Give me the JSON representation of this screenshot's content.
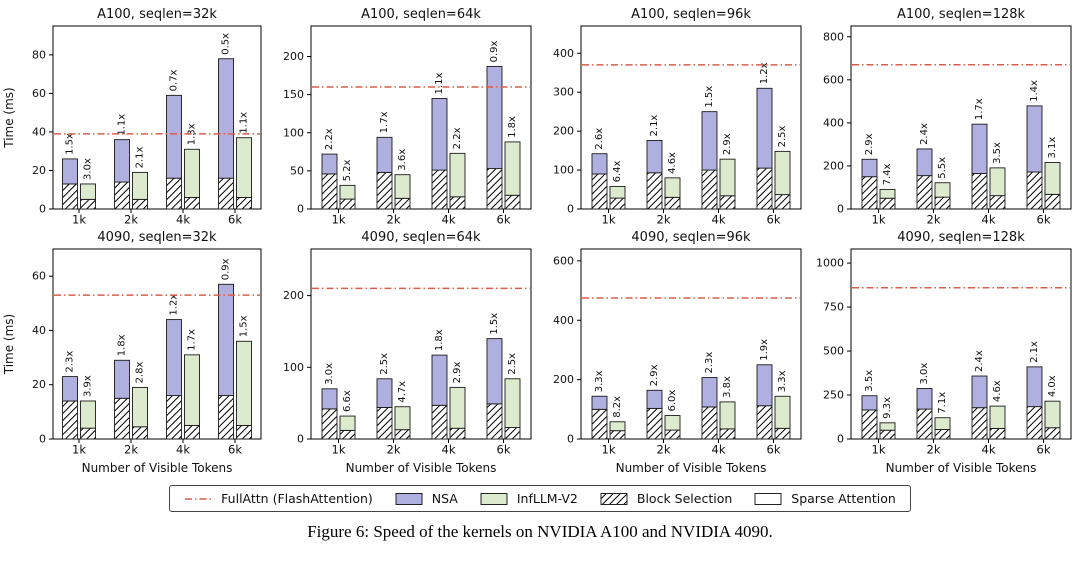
{
  "figure": {
    "caption": "Figure 6: Speed of the kernels on NVIDIA A100 and NVIDIA 4090.",
    "ylabel": "Time (ms)",
    "xlabel": "Number of Visible Tokens"
  },
  "colors": {
    "nsa": "#b0b0e0",
    "infllm": "#dceacd",
    "fullattn_line": "#d95f4c",
    "bar_edge": "#1a1a1a"
  },
  "legend": {
    "items": [
      {
        "label": "FullAttn (FlashAttention)",
        "type": "dashdot-line",
        "color": "#d95f4c"
      },
      {
        "label": "NSA",
        "type": "solid",
        "color": "#b0b0e0"
      },
      {
        "label": "InfLLM-V2",
        "type": "solid",
        "color": "#dceacd"
      },
      {
        "label": "Block Selection",
        "type": "hatched",
        "color": "#ffffff"
      },
      {
        "label": "Sparse Attention",
        "type": "solid",
        "color": "#ffffff"
      }
    ]
  },
  "chart_data": {
    "type": "bar",
    "categories": [
      "1k",
      "2k",
      "4k",
      "6k"
    ],
    "series_names": [
      "NSA",
      "InfLLM-V2"
    ],
    "note": "Stacked bars: hatched lower segment = Block Selection time, upper segment = Sparse Attention time. Dash-dot line = FullAttn (FlashAttention) baseline. Rotated labels = speedup vs FullAttn.",
    "subplots": [
      {
        "title": "A100, seqlen=32k",
        "yticks": [
          0,
          20,
          40,
          60,
          80
        ],
        "ymax": 95,
        "fullattn_line": 39,
        "nsa_total": [
          26,
          36,
          59,
          78
        ],
        "nsa_block": [
          13,
          14,
          16,
          16
        ],
        "nsa_speedup": [
          "1.5x",
          "1.1x",
          "0.7x",
          "0.5x"
        ],
        "inf_total": [
          13,
          19,
          31,
          37
        ],
        "inf_block": [
          5,
          5,
          6,
          6
        ],
        "inf_speedup": [
          "3.0x",
          "2.1x",
          "1.3x",
          "1.1x"
        ]
      },
      {
        "title": "A100, seqlen=64k",
        "yticks": [
          0,
          50,
          100,
          150,
          200
        ],
        "ymax": 240,
        "fullattn_line": 160,
        "nsa_total": [
          72,
          94,
          145,
          187
        ],
        "nsa_block": [
          46,
          48,
          51,
          53
        ],
        "nsa_speedup": [
          "2.2x",
          "1.7x",
          "1.1x",
          "0.9x"
        ],
        "inf_total": [
          31,
          45,
          73,
          88
        ],
        "inf_block": [
          13,
          14,
          16,
          18
        ],
        "inf_speedup": [
          "5.2x",
          "3.6x",
          "2.2x",
          "1.8x"
        ]
      },
      {
        "title": "A100, seqlen=96k",
        "yticks": [
          0,
          100,
          200,
          300,
          400
        ],
        "ymax": 470,
        "fullattn_line": 370,
        "nsa_total": [
          142,
          176,
          250,
          310
        ],
        "nsa_block": [
          90,
          93,
          100,
          105
        ],
        "nsa_speedup": [
          "2.6x",
          "2.1x",
          "1.5x",
          "1.2x"
        ],
        "inf_total": [
          58,
          80,
          128,
          148
        ],
        "inf_block": [
          28,
          30,
          34,
          37
        ],
        "inf_speedup": [
          "6.4x",
          "4.6x",
          "2.9x",
          "2.5x"
        ]
      },
      {
        "title": "A100, seqlen=128k",
        "yticks": [
          0,
          200,
          400,
          600,
          800
        ],
        "ymax": 850,
        "fullattn_line": 670,
        "nsa_total": [
          231,
          279,
          394,
          479
        ],
        "nsa_block": [
          150,
          155,
          165,
          172
        ],
        "nsa_speedup": [
          "2.9x",
          "2.4x",
          "1.7x",
          "1.4x"
        ],
        "inf_total": [
          91,
          122,
          191,
          216
        ],
        "inf_block": [
          50,
          55,
          62,
          68
        ],
        "inf_speedup": [
          "7.4x",
          "5.5x",
          "3.5x",
          "3.1x"
        ]
      },
      {
        "title": "4090, seqlen=32k",
        "yticks": [
          0,
          20,
          40,
          60
        ],
        "ymax": 70,
        "fullattn_line": 53,
        "nsa_total": [
          23,
          29,
          44,
          57
        ],
        "nsa_block": [
          14,
          15,
          16,
          16
        ],
        "nsa_speedup": [
          "2.3x",
          "1.8x",
          "1.2x",
          "0.9x"
        ],
        "inf_total": [
          14,
          19,
          31,
          36
        ],
        "inf_block": [
          4,
          4.5,
          5,
          5
        ],
        "inf_speedup": [
          "3.9x",
          "2.8x",
          "1.7x",
          "1.5x"
        ]
      },
      {
        "title": "4090, seqlen=64k",
        "yticks": [
          0,
          100,
          200
        ],
        "ymax": 265,
        "fullattn_line": 210,
        "nsa_total": [
          70,
          84,
          117,
          140
        ],
        "nsa_block": [
          42,
          44,
          47,
          49
        ],
        "nsa_speedup": [
          "3.0x",
          "2.5x",
          "1.8x",
          "1.5x"
        ],
        "inf_total": [
          32,
          45,
          72,
          84
        ],
        "inf_block": [
          12,
          13,
          15,
          16
        ],
        "inf_speedup": [
          "6.6x",
          "4.7x",
          "2.9x",
          "2.5x"
        ]
      },
      {
        "title": "4090, seqlen=96k",
        "yticks": [
          0,
          200,
          400,
          600
        ],
        "ymax": 640,
        "fullattn_line": 475,
        "nsa_total": [
          144,
          164,
          207,
          250
        ],
        "nsa_block": [
          100,
          103,
          108,
          112
        ],
        "nsa_speedup": [
          "3.3x",
          "2.9x",
          "2.3x",
          "1.9x"
        ],
        "inf_total": [
          58,
          79,
          125,
          144
        ],
        "inf_block": [
          28,
          30,
          34,
          36
        ],
        "inf_speedup": [
          "8.2x",
          "6.0x",
          "3.8x",
          "3.3x"
        ]
      },
      {
        "title": "4090, seqlen=128k",
        "yticks": [
          0,
          250,
          500,
          750,
          1000
        ],
        "ymax": 1080,
        "fullattn_line": 860,
        "nsa_total": [
          246,
          287,
          358,
          410
        ],
        "nsa_block": [
          165,
          170,
          178,
          184
        ],
        "nsa_speedup": [
          "3.5x",
          "3.0x",
          "2.4x",
          "2.1x"
        ],
        "inf_total": [
          92,
          121,
          187,
          215
        ],
        "inf_block": [
          50,
          54,
          60,
          64
        ],
        "inf_speedup": [
          "9.3x",
          "7.1x",
          "4.6x",
          "4.0x"
        ]
      }
    ]
  }
}
